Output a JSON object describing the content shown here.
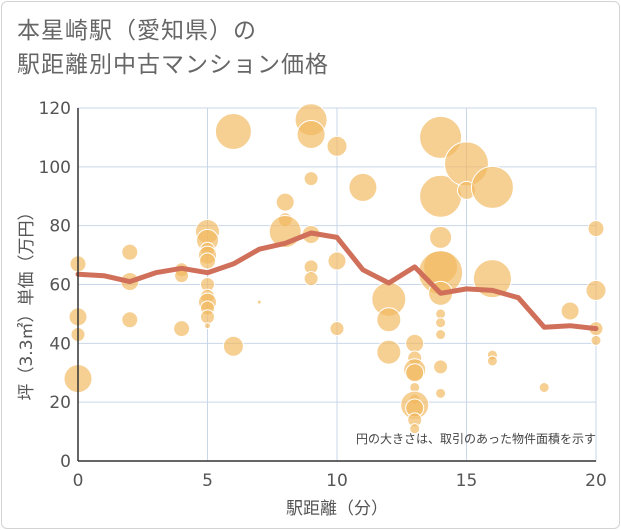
{
  "title_line1": "本星崎駅（愛知県）の",
  "title_line2": "駅距離別中古マンション価格",
  "chart_data": {
    "type": "scatter",
    "xlabel": "駅距離（分）",
    "ylabel": "坪（3.3㎡）単価（万円）",
    "xlim": [
      0,
      20
    ],
    "ylim": [
      0,
      120
    ],
    "xticks": [
      0,
      5,
      10,
      15,
      20
    ],
    "yticks": [
      0,
      20,
      40,
      60,
      80,
      100,
      120
    ],
    "grid": true,
    "note": "円の大きさは、取引のあった物件面積を示す",
    "colors": {
      "bubble": "#f2b85e",
      "line": "#d0705a",
      "grid": "#c9d7e8"
    },
    "bubbles": [
      {
        "x": 0,
        "y": 67,
        "s": 8
      },
      {
        "x": 0,
        "y": 49,
        "s": 9
      },
      {
        "x": 0,
        "y": 43,
        "s": 7
      },
      {
        "x": 0,
        "y": 28,
        "s": 14
      },
      {
        "x": 2,
        "y": 71,
        "s": 8
      },
      {
        "x": 2,
        "y": 61,
        "s": 9
      },
      {
        "x": 2,
        "y": 48,
        "s": 8
      },
      {
        "x": 4,
        "y": 65,
        "s": 7
      },
      {
        "x": 4,
        "y": 63,
        "s": 7
      },
      {
        "x": 4,
        "y": 45,
        "s": 8
      },
      {
        "x": 5,
        "y": 78,
        "s": 12
      },
      {
        "x": 5,
        "y": 75,
        "s": 11
      },
      {
        "x": 5,
        "y": 72,
        "s": 7
      },
      {
        "x": 5,
        "y": 70,
        "s": 9
      },
      {
        "x": 5,
        "y": 68,
        "s": 8
      },
      {
        "x": 5,
        "y": 60,
        "s": 7
      },
      {
        "x": 5,
        "y": 56,
        "s": 7
      },
      {
        "x": 5,
        "y": 54,
        "s": 9
      },
      {
        "x": 5,
        "y": 52,
        "s": 7
      },
      {
        "x": 5,
        "y": 49,
        "s": 7
      },
      {
        "x": 5,
        "y": 46,
        "s": 3
      },
      {
        "x": 6,
        "y": 112,
        "s": 18
      },
      {
        "x": 6,
        "y": 39,
        "s": 10
      },
      {
        "x": 7,
        "y": 54,
        "s": 2
      },
      {
        "x": 8,
        "y": 88,
        "s": 9
      },
      {
        "x": 8,
        "y": 82,
        "s": 7
      },
      {
        "x": 8,
        "y": 78,
        "s": 16
      },
      {
        "x": 9,
        "y": 116,
        "s": 16
      },
      {
        "x": 9,
        "y": 111,
        "s": 14
      },
      {
        "x": 9,
        "y": 96,
        "s": 7
      },
      {
        "x": 9,
        "y": 77,
        "s": 9
      },
      {
        "x": 9,
        "y": 66,
        "s": 7
      },
      {
        "x": 9,
        "y": 62,
        "s": 7
      },
      {
        "x": 10,
        "y": 107,
        "s": 10
      },
      {
        "x": 10,
        "y": 68,
        "s": 9
      },
      {
        "x": 10,
        "y": 45,
        "s": 7
      },
      {
        "x": 11,
        "y": 93,
        "s": 14
      },
      {
        "x": 12,
        "y": 55,
        "s": 17
      },
      {
        "x": 12,
        "y": 48,
        "s": 12
      },
      {
        "x": 12,
        "y": 37,
        "s": 12
      },
      {
        "x": 13,
        "y": 40,
        "s": 9
      },
      {
        "x": 13,
        "y": 35,
        "s": 7
      },
      {
        "x": 13,
        "y": 31,
        "s": 11
      },
      {
        "x": 13,
        "y": 30,
        "s": 9
      },
      {
        "x": 13,
        "y": 25,
        "s": 5
      },
      {
        "x": 13,
        "y": 21,
        "s": 5
      },
      {
        "x": 13,
        "y": 19,
        "s": 14
      },
      {
        "x": 13,
        "y": 18,
        "s": 9
      },
      {
        "x": 13,
        "y": 14,
        "s": 7
      },
      {
        "x": 13,
        "y": 11,
        "s": 5
      },
      {
        "x": 14,
        "y": 110,
        "s": 21
      },
      {
        "x": 14,
        "y": 90,
        "s": 21
      },
      {
        "x": 14,
        "y": 76,
        "s": 11
      },
      {
        "x": 14,
        "y": 66,
        "s": 17
      },
      {
        "x": 14,
        "y": 64,
        "s": 22
      },
      {
        "x": 14,
        "y": 57,
        "s": 12
      },
      {
        "x": 14,
        "y": 50,
        "s": 5
      },
      {
        "x": 14,
        "y": 47,
        "s": 5
      },
      {
        "x": 14,
        "y": 43,
        "s": 5
      },
      {
        "x": 14,
        "y": 32,
        "s": 7
      },
      {
        "x": 14,
        "y": 23,
        "s": 5
      },
      {
        "x": 15,
        "y": 101,
        "s": 22
      },
      {
        "x": 15,
        "y": 92,
        "s": 9
      },
      {
        "x": 16,
        "y": 93,
        "s": 21
      },
      {
        "x": 16,
        "y": 62,
        "s": 19
      },
      {
        "x": 16,
        "y": 36,
        "s": 5
      },
      {
        "x": 16,
        "y": 34,
        "s": 5
      },
      {
        "x": 18,
        "y": 25,
        "s": 5
      },
      {
        "x": 19,
        "y": 51,
        "s": 9
      },
      {
        "x": 20,
        "y": 79,
        "s": 8
      },
      {
        "x": 20,
        "y": 58,
        "s": 10
      },
      {
        "x": 20,
        "y": 45,
        "s": 7
      },
      {
        "x": 20,
        "y": 41,
        "s": 5
      }
    ],
    "series": [
      {
        "x": [
          0,
          1,
          2,
          3,
          4,
          5,
          6,
          7,
          8,
          9,
          10,
          11,
          12,
          13,
          14,
          15,
          16,
          17,
          18,
          19,
          20
        ],
        "values": [
          63.5,
          63,
          61,
          64,
          65.5,
          64,
          67,
          72,
          74,
          77.5,
          76,
          65,
          60.5,
          66,
          57,
          58.5,
          58,
          55.5,
          45.5,
          46,
          45
        ]
      }
    ]
  }
}
